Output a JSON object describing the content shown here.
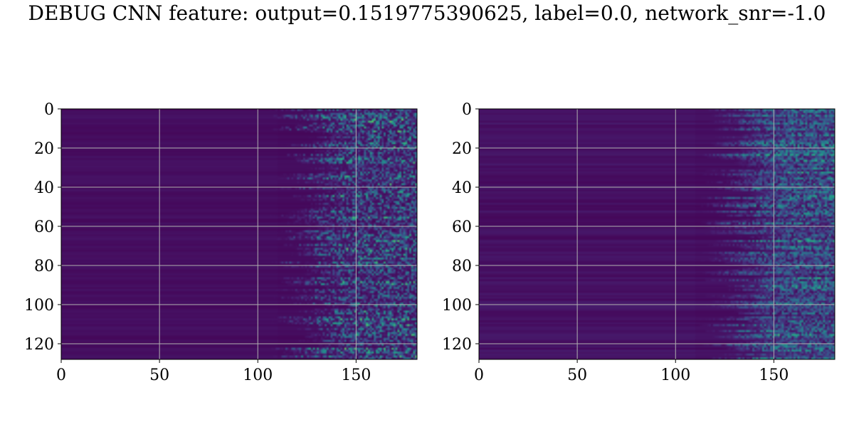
{
  "title": "DEBUG CNN feature: output=0.1519775390625, label=0.0, network_snr=-1.0",
  "chart_data": [
    {
      "type": "heatmap",
      "colormap": "viridis",
      "xlim": [
        0,
        181
      ],
      "ylim": [
        128,
        0
      ],
      "xticks": [
        0,
        50,
        100,
        150
      ],
      "yticks": [
        0,
        20,
        40,
        60,
        80,
        100,
        120
      ],
      "xtick_labels": [
        "0",
        "50",
        "100",
        "150"
      ],
      "ytick_labels": [
        "0",
        "20",
        "40",
        "60",
        "80",
        "100",
        "120"
      ],
      "grid": true,
      "onset_column_approx": 120,
      "max_intensity_approx": 0.9
    },
    {
      "type": "heatmap",
      "colormap": "viridis",
      "xlim": [
        0,
        181
      ],
      "ylim": [
        128,
        0
      ],
      "xticks": [
        0,
        50,
        100,
        150
      ],
      "yticks": [
        0,
        20,
        40,
        60,
        80,
        100,
        120
      ],
      "xtick_labels": [
        "0",
        "50",
        "100",
        "150"
      ],
      "ytick_labels": [
        "0",
        "20",
        "40",
        "60",
        "80",
        "100",
        "120"
      ],
      "grid": true,
      "onset_column_approx": 125,
      "max_intensity_approx": 0.85
    }
  ]
}
